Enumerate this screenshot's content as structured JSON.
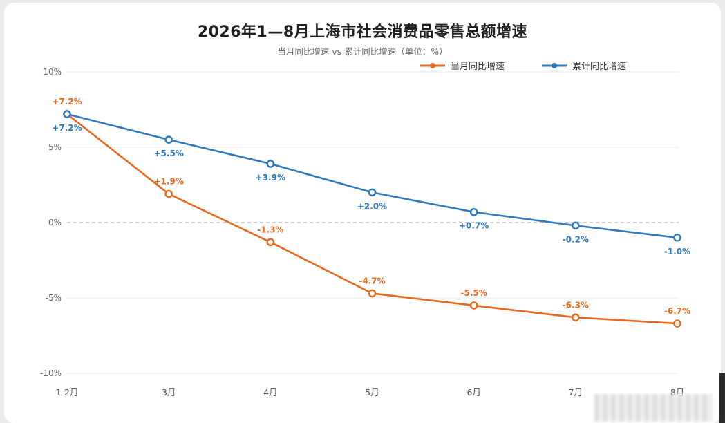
{
  "chart_data": {
    "type": "line",
    "title": "2026年1—8月上海市社会消费品零售总额增速",
    "subtitle": "当月同比增速 vs 累计同比增速（单位：%）",
    "categories": [
      "1-2月",
      "3月",
      "4月",
      "5月",
      "6月",
      "7月",
      "8月"
    ],
    "series": [
      {
        "name": "当月同比增速",
        "color": "#e8691e",
        "values": [
          7.2,
          1.9,
          -1.3,
          -4.7,
          -5.5,
          -6.3,
          -6.7
        ],
        "labels": [
          "+7.2%",
          "+1.9%",
          "-1.3%",
          "-4.7%",
          "-5.5%",
          "-6.3%",
          "-6.7%"
        ]
      },
      {
        "name": "累计同比增速",
        "color": "#2e7ac0",
        "values": [
          7.2,
          5.5,
          3.9,
          2.0,
          0.7,
          -0.2,
          -1.0
        ],
        "labels": [
          "+7.2%",
          "+5.5%",
          "+3.9%",
          "+2.0%",
          "+0.7%",
          "-0.2%",
          "-1.0%"
        ]
      }
    ],
    "yticks": [
      10,
      5,
      0,
      -5,
      -10
    ],
    "ytick_labels": [
      "10%",
      "5%",
      "0%",
      "-5%",
      "-10%"
    ],
    "ylim": [
      -10,
      10
    ],
    "grid": true,
    "zero_line": "dashed",
    "legend": "top-right"
  }
}
